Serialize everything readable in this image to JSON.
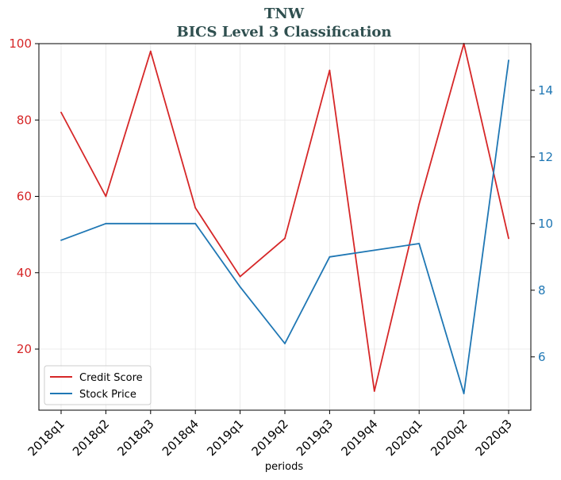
{
  "chart_data": {
    "type": "line",
    "title": "TNW",
    "subtitle": "BICS Level 3 Classification",
    "xlabel": "periods",
    "categories": [
      "2018q1",
      "2018q2",
      "2018q3",
      "2018q4",
      "2019q1",
      "2019q2",
      "2019q3",
      "2019q4",
      "2020q1",
      "2020q2",
      "2020q3"
    ],
    "series": [
      {
        "name": "Credit Score",
        "axis": "left",
        "color": "#d62728",
        "values": [
          82,
          60,
          98,
          57,
          39,
          49,
          93,
          9,
          58,
          100,
          49
        ]
      },
      {
        "name": "Stock Price",
        "axis": "right",
        "color": "#1f77b4",
        "values": [
          9.5,
          10.0,
          10.0,
          10.0,
          8.1,
          6.4,
          9.0,
          9.2,
          9.4,
          4.9,
          14.9
        ]
      }
    ],
    "left_axis": {
      "ylim": [
        4,
        100
      ],
      "ticks": [
        20,
        40,
        60,
        80,
        100
      ],
      "color": "#d62728"
    },
    "right_axis": {
      "ylim": [
        4.4,
        15.4
      ],
      "ticks": [
        6,
        8,
        10,
        12,
        14
      ],
      "color": "#1f77b4"
    },
    "grid": true,
    "legend_position": "lower-left"
  }
}
